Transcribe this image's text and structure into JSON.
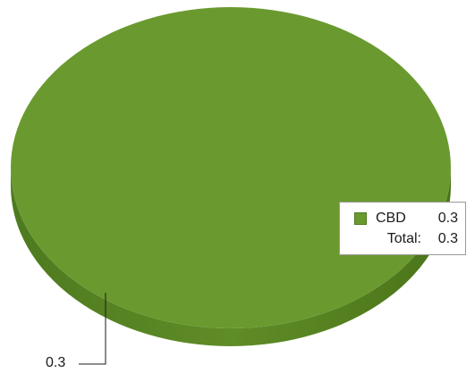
{
  "chart_data": {
    "type": "pie",
    "style": "3d",
    "categories": [
      "CBD"
    ],
    "values": [
      0.3
    ],
    "colors": [
      "#6a9a2f"
    ],
    "total_label": "Total:",
    "total_value": "0.3",
    "data_labels": [
      "0.3"
    ],
    "legend_position": "right"
  }
}
